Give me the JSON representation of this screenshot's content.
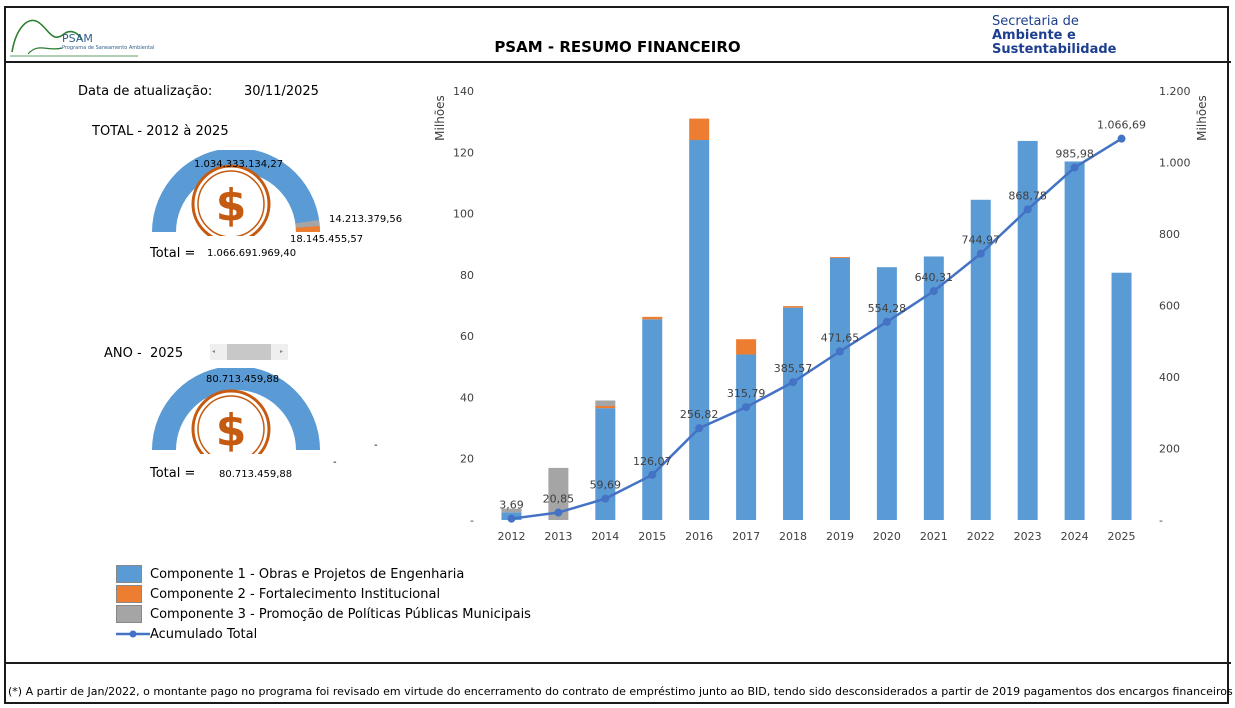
{
  "header": {
    "title": "PSAM - RESUMO FINANCEIRO",
    "logo_left_main": "PSAM",
    "logo_left_sub": "Programa de Saneamento Ambiental",
    "logo_right_line1": "Secretaria de",
    "logo_right_line2": "Ambiente e",
    "logo_right_line3": "Sustentabilidade"
  },
  "summary": {
    "update_label": "Data de atualização:",
    "update_value": "30/11/2025",
    "total_period_label": "TOTAL  - 2012 à 2025",
    "total_gauge": {
      "component1": "1.034.333.134,27",
      "component2": "14.213.379,56",
      "component3": "18.145.455,57",
      "total_label": "Total =",
      "total_value": "1.066.691.969,40",
      "component1_value": 1034333134.27,
      "component2_value": 14213379.56,
      "component3_value": 18145455.57
    },
    "year_label": "ANO -",
    "year_value": "2025",
    "year_gauge": {
      "component1": "80.713.459,88",
      "component2": "-",
      "component3": "-",
      "total_label": "Total =",
      "total_value": "80.713.459,88",
      "component1_value": 80713459.88,
      "component2_value": 0,
      "component3_value": 0
    },
    "icon": "dollar-coin-icon"
  },
  "legend": {
    "items": [
      {
        "label": "Componente 1 - Obras e Projetos de Engenharia",
        "color": "#5b9bd5"
      },
      {
        "label": "Componente 2 - Fortalecimento Institucional",
        "color": "#ed7d31"
      },
      {
        "label": "Componente 3 - Promoção de Políticas Públicas Municipais",
        "color": "#a5a5a5"
      },
      {
        "label": "Acumulado Total",
        "color": "#4472c4"
      }
    ]
  },
  "chart_data": {
    "type": "bar",
    "stacked": true,
    "categories": [
      "2012",
      "2013",
      "2014",
      "2015",
      "2016",
      "2017",
      "2018",
      "2019",
      "2020",
      "2021",
      "2022",
      "2023",
      "2024",
      "2025"
    ],
    "series": [
      {
        "name": "Componente 1 - Obras e Projetos de Engenharia",
        "axis": "left",
        "color": "#5b9bd5",
        "values": [
          2.5,
          0,
          36.5,
          65.5,
          124,
          54,
          69.3,
          85.5,
          82.5,
          86,
          104.5,
          123.7,
          117,
          80.7
        ]
      },
      {
        "name": "Componente 2 - Fortalecimento Institucional",
        "axis": "left",
        "color": "#ed7d31",
        "values": [
          0,
          0,
          0.7,
          0.8,
          7,
          5,
          0.5,
          0.3,
          0,
          0,
          0,
          0,
          0,
          0
        ]
      },
      {
        "name": "Componente 3 - Promoção de Políticas Públicas Municipais",
        "axis": "left",
        "color": "#a5a5a5",
        "values": [
          1.2,
          17,
          1.8,
          0,
          0,
          0,
          0,
          0,
          0,
          0,
          0,
          0,
          0,
          0
        ]
      },
      {
        "name": "Acumulado Total",
        "type": "line",
        "axis": "right",
        "color": "#4472c4",
        "values": [
          3.69,
          20.85,
          59.69,
          126.07,
          256.82,
          315.79,
          385.57,
          471.65,
          554.28,
          640.31,
          744.97,
          868.78,
          985.98,
          1066.69
        ],
        "labels": [
          "3,69",
          "20,85",
          "59,69",
          "126,07",
          "256,82",
          "315,79",
          "385,57",
          "471,65",
          "554,28",
          "640,31",
          "744,97",
          "868,78",
          "985,98",
          "1.066,69"
        ]
      }
    ],
    "y_left": {
      "label": "Milhões",
      "min": 0,
      "max": 140,
      "ticks": [
        0,
        20,
        40,
        60,
        80,
        100,
        120,
        140
      ],
      "tick_labels": [
        "-",
        "20",
        "40",
        "60",
        "80",
        "100",
        "120",
        "140"
      ]
    },
    "y_right": {
      "label": "Milhões",
      "min": 0,
      "max": 1200,
      "ticks": [
        0,
        200,
        400,
        600,
        800,
        1000,
        1200
      ],
      "tick_labels": [
        "-",
        "200",
        "400",
        "600",
        "800",
        "1.000",
        "1.200"
      ]
    },
    "grid": false,
    "legend_position": "bottom-left"
  },
  "footer": {
    "note": "(*) A partir de Jan/2022, o montante pago no programa foi revisado em virtude do encerramento do contrato de empréstimo junto ao BID, tendo sido desconsiderados a partir de 2019 pagamentos dos encargos financeiros ao Banco."
  }
}
